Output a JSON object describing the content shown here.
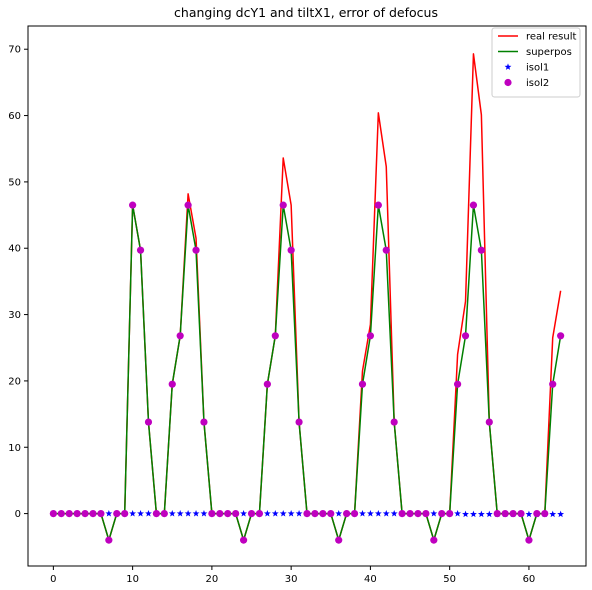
{
  "chart_data": {
    "type": "line",
    "title": "changing dcY1 and tiltX1, error of defocus",
    "xlabel": "",
    "ylabel": "",
    "xlim": [
      -3.2,
      67.2
    ],
    "ylim": [
      -7.9,
      73.5
    ],
    "xticks": [
      0,
      10,
      20,
      30,
      40,
      50,
      60
    ],
    "yticks": [
      0,
      10,
      20,
      30,
      40,
      50,
      60,
      70
    ],
    "legend_position": "top-right",
    "grid": false,
    "series": [
      {
        "name": "real result",
        "kind": "line",
        "color": "#ff0000",
        "x": [
          0,
          1,
          2,
          3,
          4,
          5,
          6,
          7,
          8,
          9,
          10,
          11,
          12,
          13,
          14,
          15,
          16,
          17,
          18,
          19,
          20,
          21,
          22,
          23,
          24,
          25,
          26,
          27,
          28,
          29,
          30,
          31,
          32,
          33,
          34,
          35,
          36,
          37,
          38,
          39,
          40,
          41,
          42,
          43,
          44,
          45,
          46,
          47,
          48,
          49,
          50,
          51,
          52,
          53,
          54,
          55,
          56,
          57,
          58,
          59,
          60,
          61,
          62,
          63,
          64
        ],
        "values": [
          0,
          0,
          0,
          0,
          0,
          0,
          0,
          -4,
          0,
          0,
          46.5,
          39.7,
          13.8,
          0,
          0,
          19.5,
          26.8,
          48.2,
          41.5,
          13.8,
          0,
          0,
          0,
          0,
          -4,
          0,
          0,
          19.5,
          26.8,
          53.6,
          46.5,
          13.8,
          0,
          0,
          0,
          0,
          -4,
          0,
          0,
          21.5,
          28.5,
          60.4,
          52.3,
          13.8,
          0,
          0,
          0,
          0,
          -4,
          0,
          0,
          24.0,
          32.0,
          69.3,
          60.1,
          13.8,
          0,
          0,
          0,
          0,
          -4,
          0,
          0,
          26.5,
          33.6
        ]
      },
      {
        "name": "superpos",
        "kind": "line",
        "color": "#008000",
        "x": [
          0,
          1,
          2,
          3,
          4,
          5,
          6,
          7,
          8,
          9,
          10,
          11,
          12,
          13,
          14,
          15,
          16,
          17,
          18,
          19,
          20,
          21,
          22,
          23,
          24,
          25,
          26,
          27,
          28,
          29,
          30,
          31,
          32,
          33,
          34,
          35,
          36,
          37,
          38,
          39,
          40,
          41,
          42,
          43,
          44,
          45,
          46,
          47,
          48,
          49,
          50,
          51,
          52,
          53,
          54,
          55,
          56,
          57,
          58,
          59,
          60,
          61,
          62,
          63,
          64
        ],
        "values": [
          0,
          0,
          0,
          0,
          0,
          0,
          0,
          -4,
          0,
          0,
          46.5,
          39.7,
          13.8,
          0,
          0,
          19.5,
          26.8,
          46.5,
          39.7,
          13.8,
          0,
          0,
          0,
          0,
          -4,
          0,
          0,
          19.5,
          26.8,
          46.5,
          39.7,
          13.8,
          0,
          0,
          0,
          0,
          -4,
          0,
          0,
          19.5,
          26.8,
          46.5,
          39.7,
          13.8,
          0,
          0,
          0,
          0,
          -4,
          0,
          0,
          19.5,
          26.8,
          46.5,
          39.7,
          13.8,
          0,
          0,
          0,
          0,
          -4,
          0,
          0,
          19.5,
          26.8
        ]
      },
      {
        "name": "isol1",
        "kind": "star",
        "color": "#0000ff",
        "x": [
          0,
          1,
          2,
          3,
          4,
          5,
          6,
          7,
          8,
          9,
          10,
          11,
          12,
          13,
          14,
          15,
          16,
          17,
          18,
          19,
          20,
          21,
          22,
          23,
          24,
          25,
          26,
          27,
          28,
          29,
          30,
          31,
          32,
          33,
          34,
          35,
          36,
          37,
          38,
          39,
          40,
          41,
          42,
          43,
          44,
          45,
          46,
          47,
          48,
          49,
          50,
          51,
          52,
          53,
          54,
          55,
          56,
          57,
          58,
          59,
          60,
          61,
          62,
          63,
          64
        ],
        "values": [
          0,
          0,
          0,
          0,
          0,
          0,
          0,
          0,
          0,
          0,
          0,
          0,
          0,
          0,
          0,
          0,
          0,
          0,
          0,
          0,
          0,
          0,
          0,
          0,
          0,
          0,
          0,
          0,
          0,
          0,
          0,
          0,
          0,
          0,
          0,
          0,
          0,
          0,
          0,
          0,
          0,
          0,
          0,
          0,
          0,
          0,
          0,
          0,
          0,
          0,
          0,
          0,
          -0.1,
          -0.1,
          -0.1,
          -0.1,
          -0.1,
          -0.1,
          -0.1,
          -0.1,
          -0.1,
          -0.1,
          -0.1,
          -0.1,
          -0.1
        ]
      },
      {
        "name": "isol2",
        "kind": "circle",
        "color": "#bf00bf",
        "x": [
          0,
          1,
          2,
          3,
          4,
          5,
          6,
          7,
          8,
          9,
          10,
          11,
          12,
          13,
          14,
          15,
          16,
          17,
          18,
          19,
          20,
          21,
          22,
          23,
          24,
          25,
          26,
          27,
          28,
          29,
          30,
          31,
          32,
          33,
          34,
          35,
          36,
          37,
          38,
          39,
          40,
          41,
          42,
          43,
          44,
          45,
          46,
          47,
          48,
          49,
          50,
          51,
          52,
          53,
          54,
          55,
          56,
          57,
          58,
          59,
          60,
          61,
          62,
          63,
          64
        ],
        "values": [
          0,
          0,
          0,
          0,
          0,
          0,
          0,
          -4,
          0,
          0,
          46.5,
          39.7,
          13.8,
          0,
          0,
          19.5,
          26.8,
          46.5,
          39.7,
          13.8,
          0,
          0,
          0,
          0,
          -4,
          0,
          0,
          19.5,
          26.8,
          46.5,
          39.7,
          13.8,
          0,
          0,
          0,
          0,
          -4,
          0,
          0,
          19.5,
          26.8,
          46.5,
          39.7,
          13.8,
          0,
          0,
          0,
          0,
          -4,
          0,
          0,
          19.5,
          26.8,
          46.5,
          39.7,
          13.8,
          0,
          0,
          0,
          0,
          -4,
          0,
          0,
          19.5,
          26.8
        ]
      }
    ]
  }
}
